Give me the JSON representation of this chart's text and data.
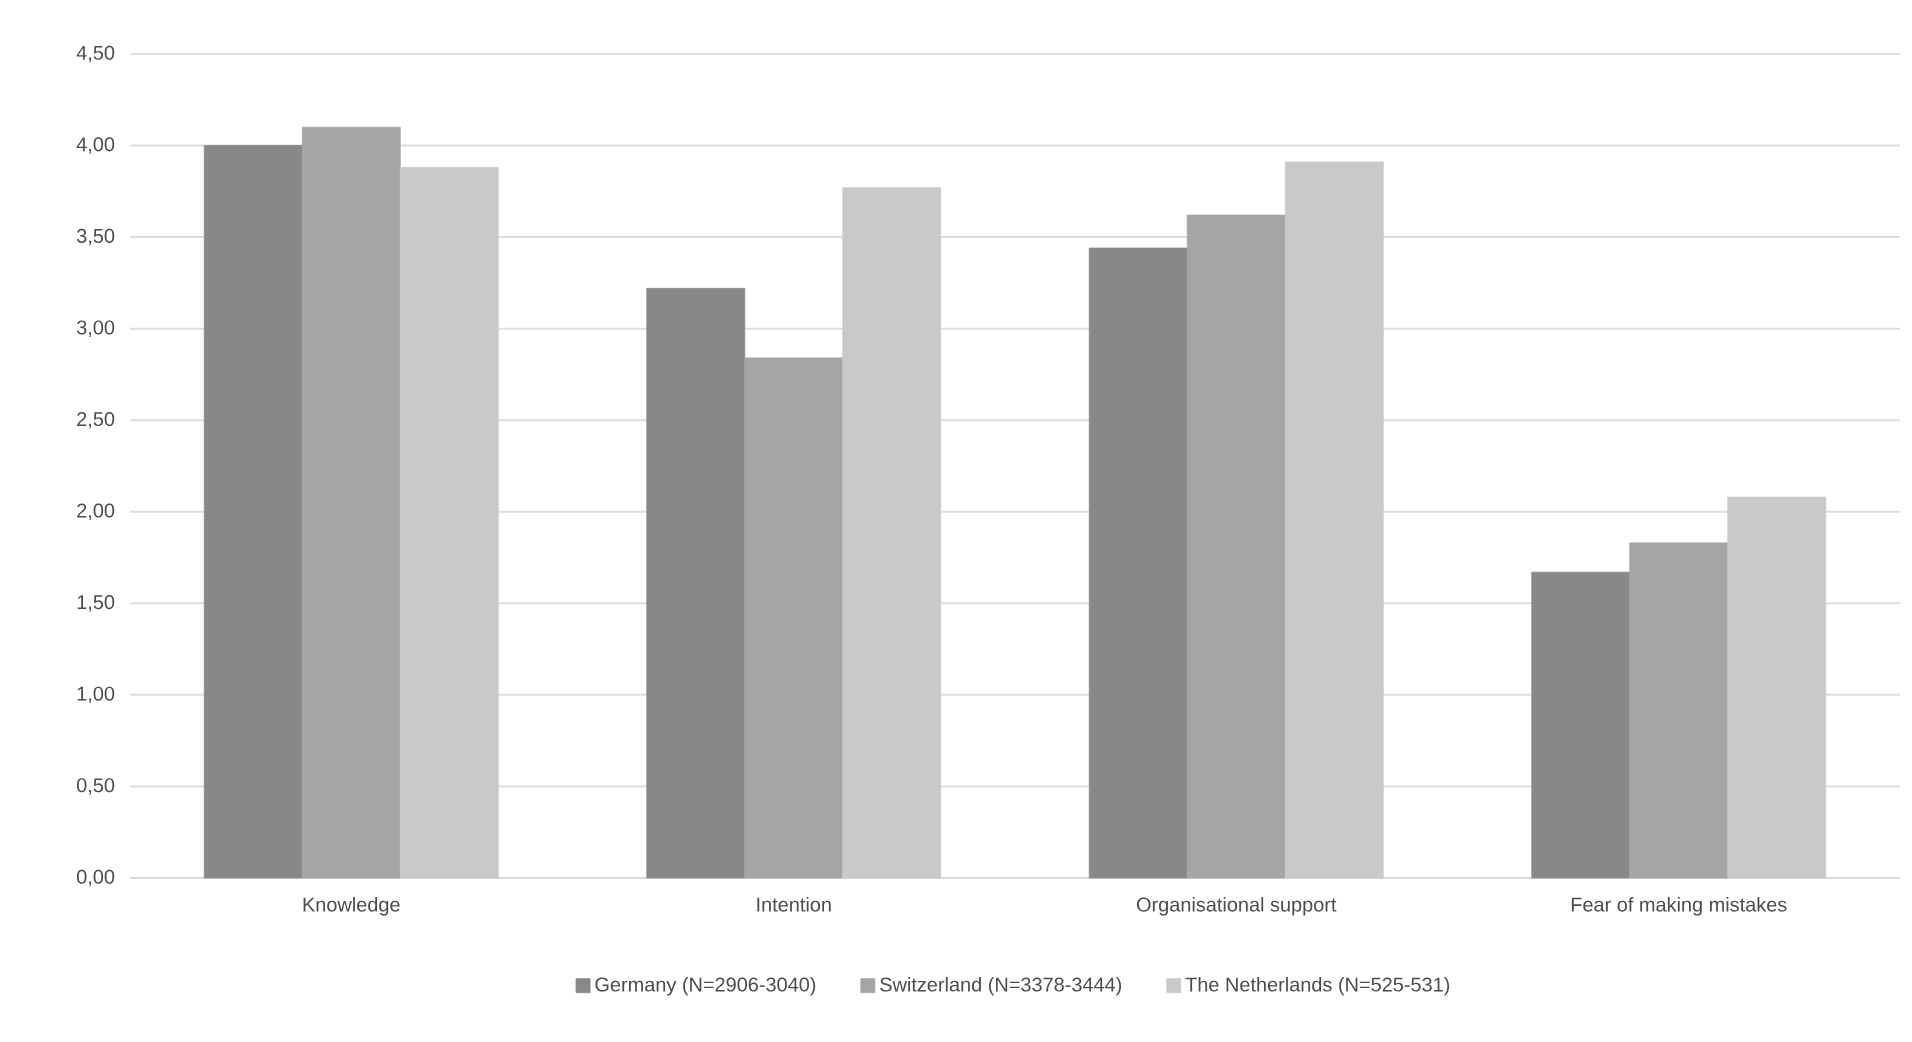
{
  "chart_data": {
    "type": "bar",
    "categories": [
      "Knowledge",
      "Intention",
      "Organisational support",
      "Fear of making mistakes"
    ],
    "series": [
      {
        "name": "Germany (N=2906-3040)",
        "color": "#888888",
        "values": [
          4.0,
          3.22,
          3.44,
          1.67
        ]
      },
      {
        "name": "Switzerland (N=3378-3444)",
        "color": "#a5a5a5",
        "values": [
          4.1,
          2.84,
          3.62,
          1.83
        ]
      },
      {
        "name": "The Netherlands (N=525-531)",
        "color": "#c9c9c9",
        "values": [
          3.88,
          3.77,
          3.91,
          2.08
        ]
      }
    ],
    "ylim": [
      0,
      4.5
    ],
    "yticks": [
      {
        "value": 0,
        "label": "0,00"
      },
      {
        "value": 0.5,
        "label": "0,50"
      },
      {
        "value": 1,
        "label": "1,00"
      },
      {
        "value": 1.5,
        "label": "1,50"
      },
      {
        "value": 2,
        "label": "2,00"
      },
      {
        "value": 2.5,
        "label": "2,50"
      },
      {
        "value": 3,
        "label": "3,00"
      },
      {
        "value": 3.5,
        "label": "3,50"
      },
      {
        "value": 4,
        "label": "4,00"
      },
      {
        "value": 4.5,
        "label": "4,50"
      }
    ],
    "grid": "y",
    "legend": "bottom"
  }
}
